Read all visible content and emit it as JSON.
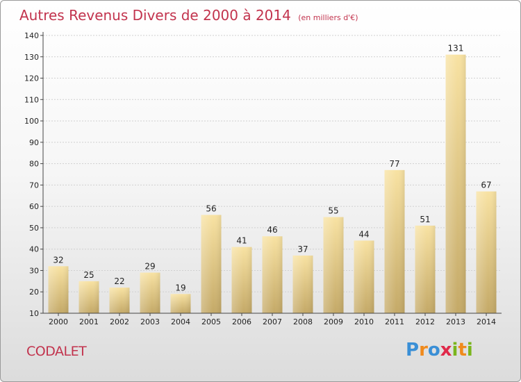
{
  "title": "Autres Revenus Divers de 2000 à 2014",
  "unit_label": "(en milliers d'€)",
  "town": "CODALET",
  "logo": {
    "letters": [
      {
        "ch": "P",
        "color": "#3a8fd6"
      },
      {
        "ch": "r",
        "color": "#f08a1c"
      },
      {
        "ch": "o",
        "color": "#3a8fd6"
      },
      {
        "ch": "x",
        "color": "#e0294a"
      },
      {
        "ch": "i",
        "color": "#7ab51d"
      },
      {
        "ch": "t",
        "color": "#f08a1c"
      },
      {
        "ch": "i",
        "color": "#7ab51d"
      }
    ]
  },
  "colors": {
    "bar_top": "#f8e2a2",
    "bar_bottom": "#c4a967",
    "grid": "#d0d0d0",
    "axis": "#444444",
    "title": "#c2334d"
  },
  "chart_data": {
    "type": "bar",
    "categories": [
      "2000",
      "2001",
      "2002",
      "2003",
      "2004",
      "2005",
      "2006",
      "2007",
      "2008",
      "2009",
      "2010",
      "2011",
      "2012",
      "2013",
      "2014"
    ],
    "values": [
      32,
      25,
      22,
      29,
      19,
      56,
      41,
      46,
      37,
      55,
      44,
      77,
      51,
      131,
      67
    ],
    "title": "Autres Revenus Divers de 2000 à 2014",
    "ylim": [
      10,
      140
    ],
    "yticks": [
      10,
      20,
      30,
      40,
      50,
      60,
      70,
      80,
      90,
      100,
      110,
      120,
      130,
      140
    ],
    "grid": true,
    "xlabel": "",
    "ylabel": ""
  }
}
